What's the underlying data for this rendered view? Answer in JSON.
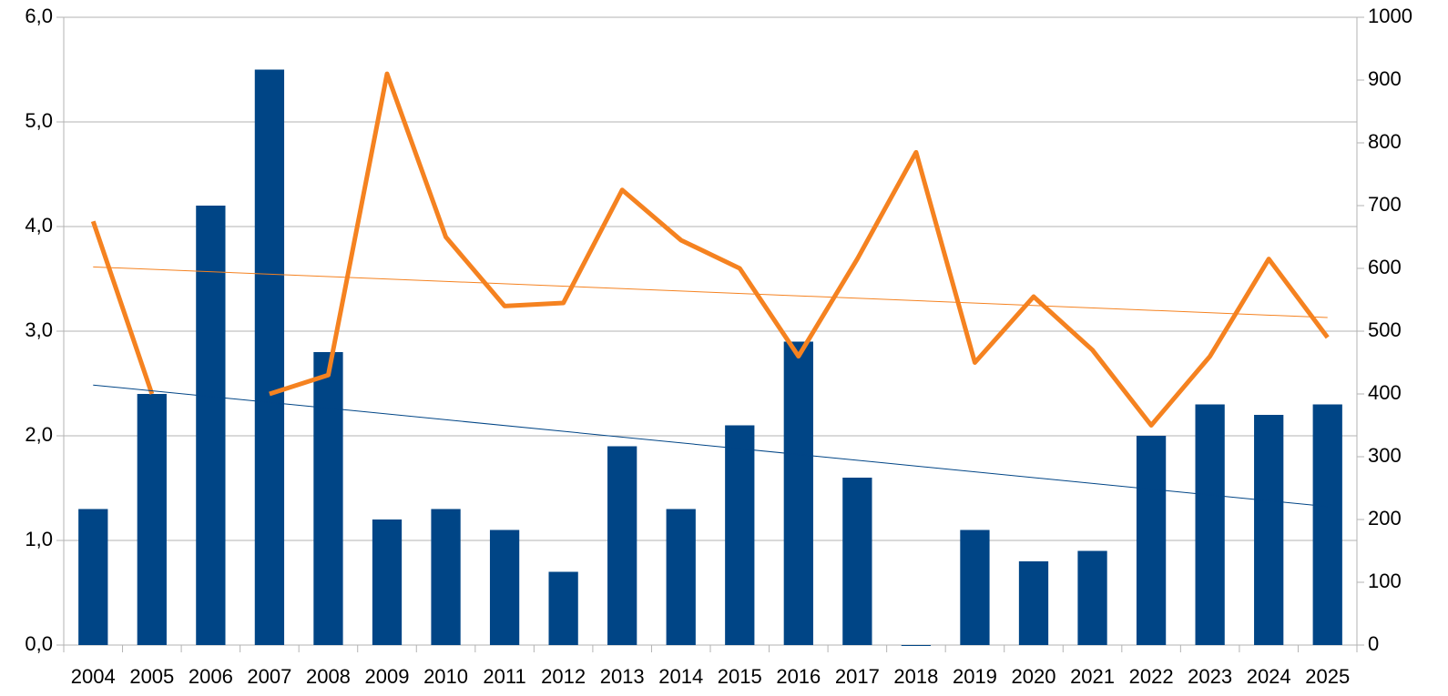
{
  "chart_data": {
    "type": "bar",
    "categories": [
      "2004",
      "2005",
      "2006",
      "2007",
      "2008",
      "2009",
      "2010",
      "2011",
      "2012",
      "2013",
      "2014",
      "2015",
      "2016",
      "2017",
      "2018",
      "2019",
      "2020",
      "2021",
      "2022",
      "2023",
      "2024",
      "2025"
    ],
    "series": [
      {
        "type": "bar",
        "color": "#004586",
        "values": [
          1.3,
          2.4,
          4.2,
          5.5,
          2.8,
          1.2,
          1.3,
          1.1,
          0.7,
          1.9,
          1.3,
          2.1,
          2.9,
          1.6,
          0,
          1.1,
          0.8,
          0.9,
          2.0,
          2.3,
          2.2,
          2.3
        ]
      },
      {
        "type": "line",
        "color": "#f58220",
        "axis": "y2",
        "values": [
          675,
          400,
          null,
          400,
          430,
          910,
          650,
          540,
          545,
          725,
          645,
          600,
          460,
          615,
          785,
          450,
          555,
          470,
          350,
          460,
          615,
          490
        ]
      }
    ],
    "trendline": true,
    "ylim": [
      0,
      6
    ],
    "yticks": [
      {
        "value": 0,
        "label": "0,0"
      },
      {
        "value": 1,
        "label": "1,0"
      },
      {
        "value": 2,
        "label": "2,0"
      },
      {
        "value": 3,
        "label": "3,0"
      },
      {
        "value": 4,
        "label": "4,0"
      },
      {
        "value": 5,
        "label": "5,0"
      },
      {
        "value": 6,
        "label": "6,0"
      }
    ],
    "y2lim": [
      0,
      1000
    ],
    "y2ticks": [
      0,
      100,
      200,
      300,
      400,
      500,
      600,
      700,
      800,
      900,
      1000
    ],
    "grid": true
  }
}
